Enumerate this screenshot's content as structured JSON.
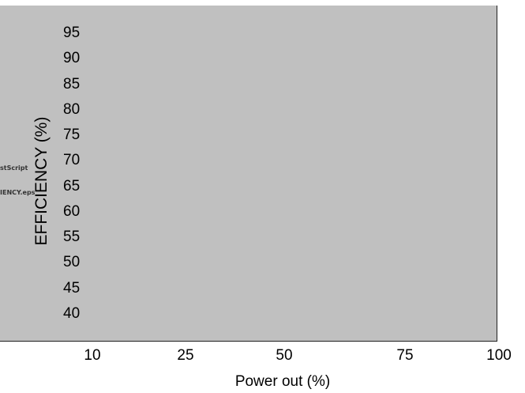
{
  "chart_data": {
    "type": "line",
    "title": "",
    "xlabel": "Power out (%)",
    "ylabel": "EFFICIENCY (%)",
    "x_ticks": [
      "10",
      "25",
      "50",
      "75",
      "100"
    ],
    "y_ticks": [
      "95",
      "90",
      "85",
      "80",
      "75",
      "70",
      "65",
      "60",
      "55",
      "50",
      "45",
      "40"
    ],
    "xlim": [
      10,
      100
    ],
    "ylim": [
      40,
      95
    ],
    "series": [],
    "grid": false,
    "background_color": "#c0c0c0"
  },
  "overlay": {
    "line1": "stScript",
    "line2": "IENCY.eps"
  }
}
